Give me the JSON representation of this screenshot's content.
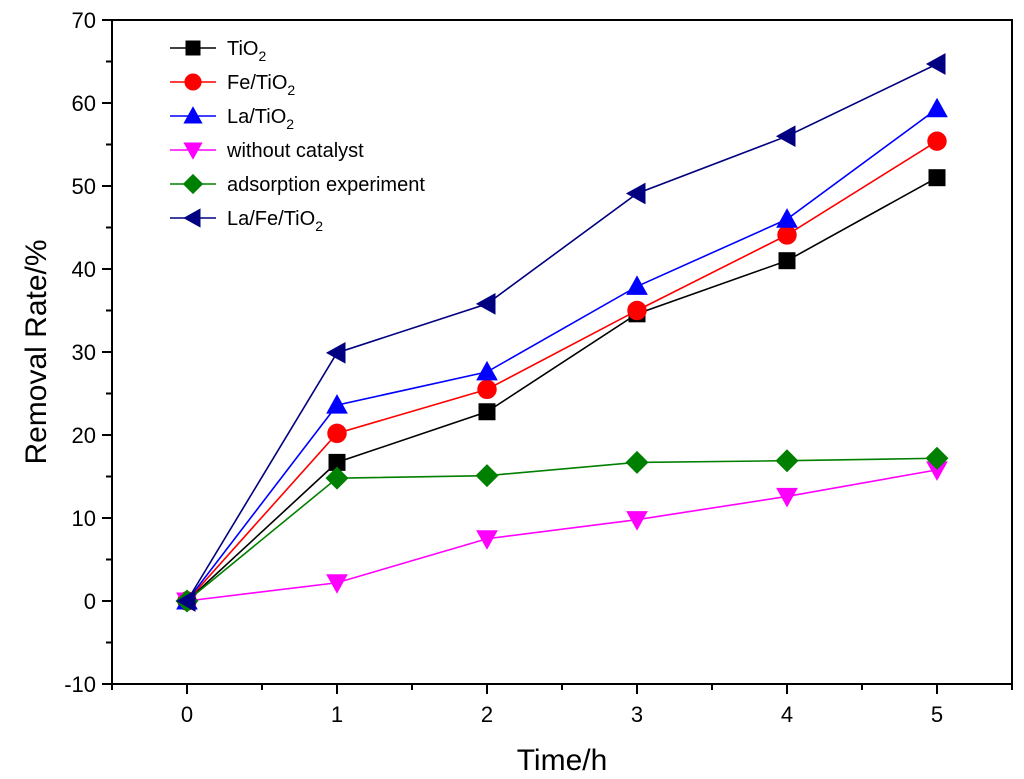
{
  "chart_data": {
    "type": "line",
    "title": "",
    "xlabel": "Time/h",
    "ylabel": "Removal Rate/%",
    "xlim": [
      -0.5,
      5.5
    ],
    "ylim": [
      -10,
      70
    ],
    "x_ticks": [
      0,
      1,
      2,
      3,
      4,
      5
    ],
    "y_ticks": [
      -10,
      0,
      10,
      20,
      30,
      40,
      50,
      60,
      70
    ],
    "grid": false,
    "legend_position": "top-left",
    "x": [
      0,
      1,
      2,
      3,
      4,
      5
    ],
    "series": [
      {
        "name": "TiO2",
        "label_main": "TiO",
        "label_sub": "2",
        "color": "#000000",
        "marker": "square",
        "values": [
          0,
          16.7,
          22.8,
          34.6,
          41.0,
          51.0
        ]
      },
      {
        "name": "Fe/TiO2",
        "label_main": "Fe/TiO",
        "label_sub": "2",
        "color": "#ff0000",
        "marker": "circle",
        "values": [
          0,
          20.2,
          25.5,
          35.0,
          44.1,
          55.4
        ]
      },
      {
        "name": "La/TiO2",
        "label_main": "La/TiO",
        "label_sub": "2",
        "color": "#0000ff",
        "marker": "triangle-up",
        "values": [
          0,
          23.6,
          27.6,
          37.9,
          46.0,
          59.3
        ]
      },
      {
        "name": "without catalyst",
        "label_main": "without catalyst",
        "label_sub": "",
        "color": "#ff00ff",
        "marker": "triangle-down",
        "values": [
          0,
          2.2,
          7.5,
          9.8,
          12.6,
          15.8
        ]
      },
      {
        "name": "adsorption experiment",
        "label_main": "adsorption experiment",
        "label_sub": "",
        "color": "#008000",
        "marker": "diamond",
        "values": [
          0,
          14.8,
          15.1,
          16.7,
          16.9,
          17.2
        ]
      },
      {
        "name": "La/Fe/TiO2",
        "label_main": "La/Fe/TiO",
        "label_sub": "2",
        "color": "#000080",
        "marker": "triangle-left",
        "values": [
          0,
          29.9,
          35.8,
          49.1,
          56.0,
          64.7
        ]
      }
    ]
  }
}
